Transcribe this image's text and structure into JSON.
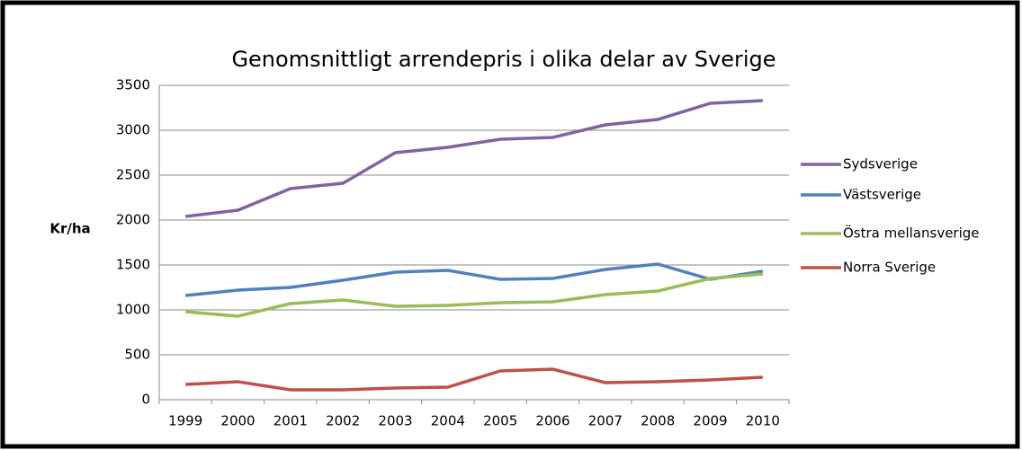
{
  "chart_data": {
    "type": "line",
    "title": "Genomsnittligt arrendepris i olika delar av Sverige",
    "y_label": "Kr/ha",
    "categories": [
      "1999",
      "2000",
      "2001",
      "2002",
      "2003",
      "2004",
      "2005",
      "2006",
      "2007",
      "2008",
      "2009",
      "2010"
    ],
    "series": [
      {
        "name": "Sydsverige",
        "color": "#8064a2",
        "values": [
          2040,
          2110,
          2350,
          2410,
          2750,
          2810,
          2900,
          2920,
          3060,
          3120,
          3300,
          3330
        ]
      },
      {
        "name": "Västsverige",
        "color": "#4f81bd",
        "values": [
          1160,
          1220,
          1250,
          1330,
          1420,
          1440,
          1340,
          1350,
          1450,
          1510,
          1340,
          1430
        ]
      },
      {
        "name": "Östra mellansverige",
        "color": "#9bbb59",
        "values": [
          980,
          930,
          1070,
          1110,
          1040,
          1050,
          1080,
          1090,
          1170,
          1210,
          1350,
          1400
        ]
      },
      {
        "name": "Norra Sverige",
        "color": "#c0504d",
        "values": [
          170,
          200,
          110,
          110,
          130,
          140,
          320,
          340,
          190,
          200,
          220,
          250
        ]
      }
    ],
    "ylim": [
      0,
      3500
    ],
    "yticks": [
      0,
      500,
      1000,
      1500,
      2000,
      2500,
      3000,
      3500
    ],
    "grid": true,
    "legend": "right"
  }
}
